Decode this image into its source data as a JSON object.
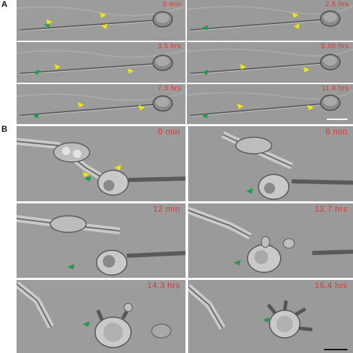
{
  "panels": {
    "a": {
      "label": "A",
      "frames": [
        {
          "time": "0 min"
        },
        {
          "time": "2.5 hrs"
        },
        {
          "time": "3.5 hrs"
        },
        {
          "time": "5.00 hrs"
        },
        {
          "time": "7.5 hrs"
        },
        {
          "time": "11.4 hrs"
        }
      ],
      "scale_bar_color": "#ffffff"
    },
    "b": {
      "label": "B",
      "frames": [
        {
          "time": "0 min"
        },
        {
          "time": "6 min"
        },
        {
          "time": "12 min"
        },
        {
          "time": "12.7 hrs"
        },
        {
          "time": "14.3 hrs"
        },
        {
          "time": "15.4 hrs"
        }
      ],
      "scale_bar_color": "#111111"
    }
  },
  "colors": {
    "timestamp": "#e8312a",
    "arrow_yellow": "#f2e600",
    "arrow_green": "#1f9a4a",
    "background_gray": "#9a9a9a"
  }
}
